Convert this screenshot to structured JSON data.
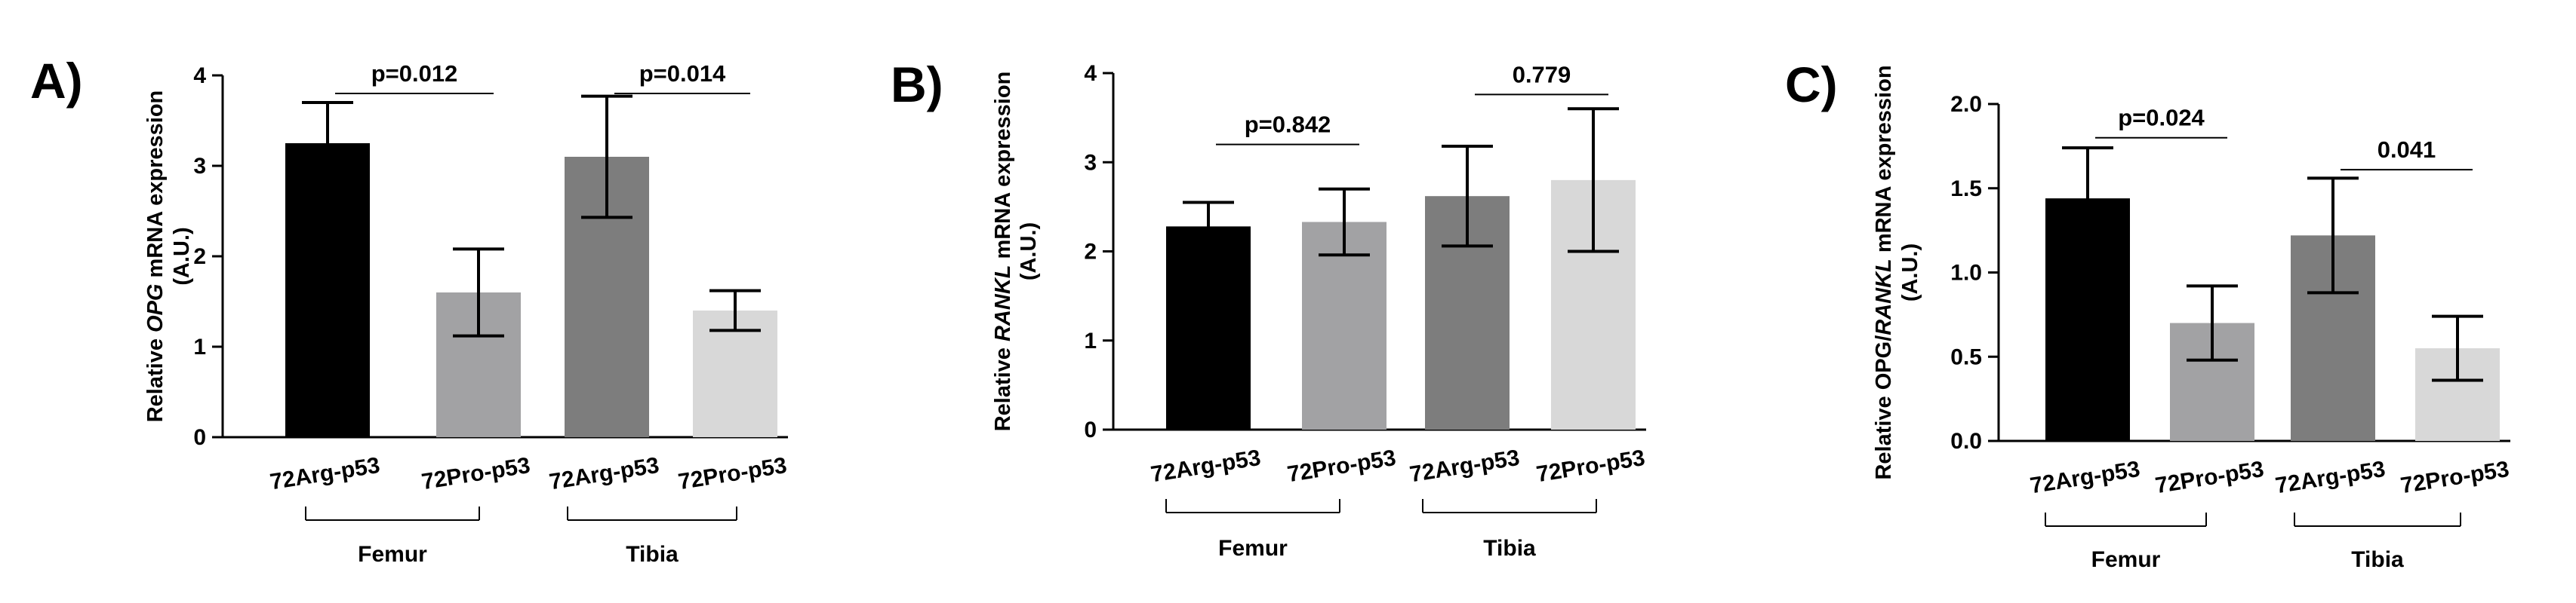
{
  "chart_data": [
    {
      "type": "bar",
      "panel_label": "A)",
      "ylabel_parts": [
        {
          "text": "Relative ",
          "italic": false
        },
        {
          "text": "OPG",
          "italic": true
        },
        {
          "text": " mRNA expression",
          "italic": false
        }
      ],
      "ylabel_line2": "(A.U.)",
      "ylim": [
        0,
        4
      ],
      "yticks": [
        0,
        1,
        2,
        3,
        4
      ],
      "categories": [
        "72Arg-p53",
        "72Pro-p53",
        "72Arg-p53",
        "72Pro-p53"
      ],
      "groups": [
        {
          "label": "Femur",
          "indices": [
            0,
            1
          ]
        },
        {
          "label": "Tibia",
          "indices": [
            2,
            3
          ]
        }
      ],
      "values": [
        3.25,
        1.6,
        3.1,
        1.4
      ],
      "errors": [
        0.45,
        0.48,
        0.67,
        0.22
      ],
      "colors": [
        "#000000",
        "#a2a2a4",
        "#7d7d7d",
        "#d8d8d8"
      ],
      "annotations": [
        {
          "text": "p=0.012",
          "from": 0,
          "to": 1,
          "y": 3.8
        },
        {
          "text": "p=0.014",
          "from": 2,
          "to": 3,
          "y": 3.8
        }
      ]
    },
    {
      "type": "bar",
      "panel_label": "B)",
      "ylabel_parts": [
        {
          "text": "Relative ",
          "italic": false
        },
        {
          "text": "RANKL",
          "italic": true
        },
        {
          "text": " mRNA expression",
          "italic": false
        }
      ],
      "ylabel_line2": "(A.U.)",
      "ylim": [
        0,
        4
      ],
      "yticks": [
        0,
        1,
        2,
        3,
        4
      ],
      "categories": [
        "72Arg-p53",
        "72Pro-p53",
        "72Arg-p53",
        "72Pro-p53"
      ],
      "groups": [
        {
          "label": "Femur",
          "indices": [
            0,
            1
          ]
        },
        {
          "label": "Tibia",
          "indices": [
            2,
            3
          ]
        }
      ],
      "values": [
        2.28,
        2.33,
        2.62,
        2.8
      ],
      "errors": [
        0.27,
        0.37,
        0.56,
        0.8
      ],
      "colors": [
        "#000000",
        "#a2a2a4",
        "#7d7d7d",
        "#d8d8d8"
      ],
      "annotations": [
        {
          "text": "p=0.842",
          "from": 0,
          "to": 1,
          "y": 3.2
        },
        {
          "text": "0.779",
          "from": 2,
          "to": 3,
          "y": 3.76
        }
      ]
    },
    {
      "type": "bar",
      "panel_label": "C)",
      "ylabel_parts": [
        {
          "text": "Relative OPG/",
          "italic": false
        },
        {
          "text": "RANKL",
          "italic": true
        },
        {
          "text": " mRNA expression",
          "italic": false
        }
      ],
      "ylabel_line2": "(A.U.)",
      "ylim": [
        0,
        2
      ],
      "yticks": [
        0.0,
        0.5,
        1.0,
        1.5,
        2.0
      ],
      "ytick_labels": [
        "0.0",
        "0.5",
        "1.0",
        "1.5",
        "2.0"
      ],
      "categories": [
        "72Arg-p53",
        "72Pro-p53",
        "72Arg-p53",
        "72Pro-p53"
      ],
      "groups": [
        {
          "label": "Femur",
          "indices": [
            0,
            1
          ]
        },
        {
          "label": "Tibia",
          "indices": [
            2,
            3
          ]
        }
      ],
      "values": [
        1.44,
        0.7,
        1.22,
        0.55
      ],
      "errors": [
        0.3,
        0.22,
        0.34,
        0.19
      ],
      "colors": [
        "#000000",
        "#a2a2a4",
        "#7d7d7d",
        "#d8d8d8"
      ],
      "annotations": [
        {
          "text": "p=0.024",
          "from": 0,
          "to": 1,
          "y": 1.8
        },
        {
          "text": "0.041",
          "from": 2,
          "to": 3,
          "y": 1.61
        }
      ]
    }
  ]
}
